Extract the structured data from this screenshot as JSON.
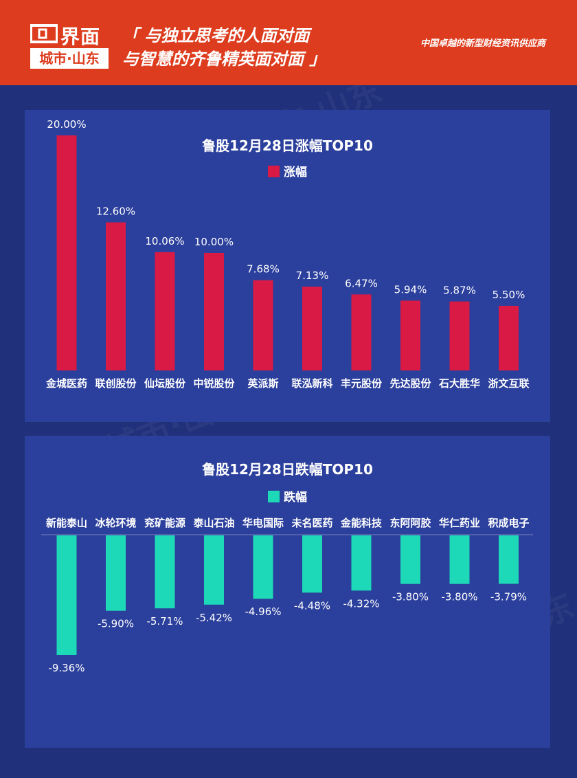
{
  "header": {
    "logo_name": "界面",
    "logo_sub": "城市·山东",
    "slogan_line1": "「 与独立思考的人面对面",
    "slogan_line2": "与智慧的齐鲁精英面对面 」",
    "tagline": "中国卓越的新型财经资讯供应商"
  },
  "colors": {
    "header_bg": "#dd3c1e",
    "page_bg": "#20307a",
    "panel_bg": "#2b3f9c",
    "gain_bar": "#d91a45",
    "loss_bar": "#1ed9b7"
  },
  "chart_data": [
    {
      "type": "bar",
      "title": "鲁股12月28日涨幅TOP10",
      "legend": "涨幅",
      "categories": [
        "金城医药",
        "联创股份",
        "仙坛股份",
        "中锐股份",
        "英派斯",
        "联泓新科",
        "丰元股份",
        "先达股份",
        "石大胜华",
        "浙文互联"
      ],
      "values": [
        20.0,
        12.6,
        10.06,
        10.0,
        7.68,
        7.13,
        6.47,
        5.94,
        5.87,
        5.5
      ],
      "labels": [
        "20.00%",
        "12.60%",
        "10.06%",
        "10.00%",
        "7.68%",
        "7.13%",
        "6.47%",
        "5.94%",
        "5.87%",
        "5.50%"
      ],
      "ylim": [
        0,
        20
      ],
      "grid": false
    },
    {
      "type": "bar",
      "title": "鲁股12月28日跌幅TOP10",
      "legend": "跌幅",
      "categories": [
        "新能泰山",
        "冰轮环境",
        "兖矿能源",
        "泰山石油",
        "华电国际",
        "未名医药",
        "金能科技",
        "东阿阿胶",
        "华仁药业",
        "积成电子"
      ],
      "values": [
        -9.36,
        -5.9,
        -5.71,
        -5.42,
        -4.96,
        -4.48,
        -4.32,
        -3.8,
        -3.8,
        -3.79
      ],
      "labels": [
        "-9.36%",
        "-5.90%",
        "-5.71%",
        "-5.42%",
        "-4.96%",
        "-4.48%",
        "-4.32%",
        "-3.80%",
        "-3.80%",
        "-3.79%"
      ],
      "ylim": [
        -9.36,
        0
      ],
      "grid": false
    }
  ]
}
